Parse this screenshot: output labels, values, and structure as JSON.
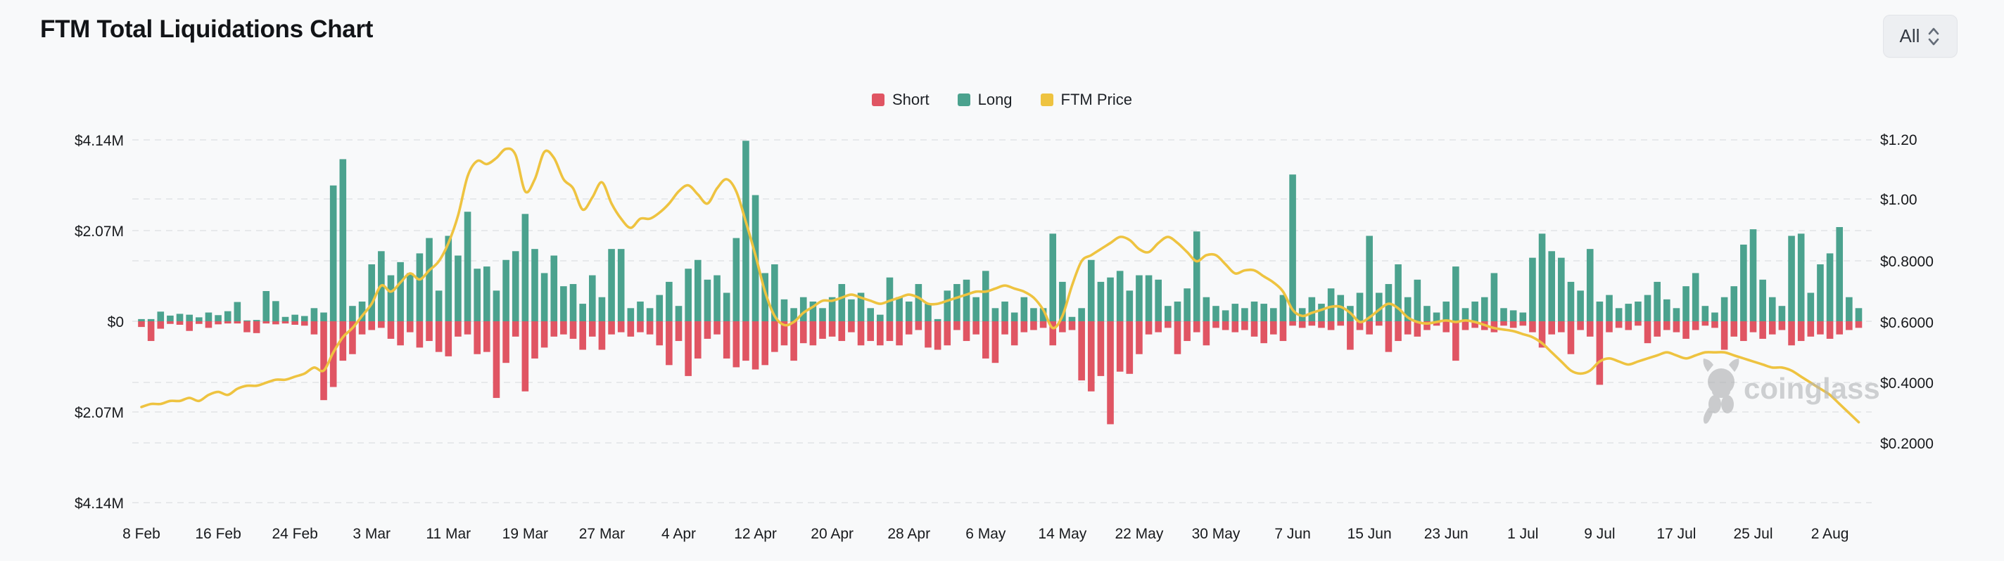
{
  "header": {
    "title": "FTM Total Liquidations Chart",
    "range_selector": {
      "value": "All"
    }
  },
  "legend": [
    {
      "label": "Short",
      "color": "#e05563"
    },
    {
      "label": "Long",
      "color": "#4ba28e"
    },
    {
      "label": "FTM Price",
      "color": "#eec340"
    }
  ],
  "watermark": {
    "label": "coinglass"
  },
  "chart_data": {
    "type": "bar+line",
    "title": "FTM Total Liquidations Chart",
    "x_tick_labels": [
      "8 Feb",
      "16 Feb",
      "24 Feb",
      "3 Mar",
      "11 Mar",
      "19 Mar",
      "27 Mar",
      "4 Apr",
      "12 Apr",
      "20 Apr",
      "28 Apr",
      "6 May",
      "14 May",
      "22 May",
      "30 May",
      "7 Jun",
      "15 Jun",
      "23 Jun",
      "1 Jul",
      "9 Jul",
      "17 Jul",
      "25 Jul",
      "2 Aug"
    ],
    "x_tick_interval_days": 8,
    "left_axis": {
      "unit": "USD liquidations",
      "tick_labels": [
        "$4.14M",
        "$2.07M",
        "$0",
        "$2.07M",
        "$4.14M"
      ],
      "max_abs_millions": 4.14
    },
    "right_axis": {
      "unit": "FTM price USD",
      "tick_labels": [
        "$1.20",
        "$1.00",
        "$0.8000",
        "$0.6000",
        "$0.4000",
        "$0.2000"
      ],
      "min": 0.2,
      "max": 1.2
    },
    "grid": true,
    "legend_position": "top-center",
    "series": [
      {
        "name": "Long",
        "type": "bar",
        "direction": "up",
        "color": "#4ba28e",
        "unit": "$M",
        "values": [
          0.05,
          0.05,
          0.22,
          0.13,
          0.17,
          0.15,
          0.09,
          0.2,
          0.14,
          0.23,
          0.44,
          0.02,
          0.03,
          0.69,
          0.46,
          0.1,
          0.15,
          0.12,
          0.3,
          0.2,
          3.1,
          3.7,
          0.35,
          0.45,
          1.3,
          1.6,
          1.05,
          1.35,
          1.1,
          1.55,
          1.9,
          0.7,
          1.95,
          1.5,
          2.5,
          1.2,
          1.25,
          0.7,
          1.4,
          1.6,
          2.45,
          1.65,
          1.1,
          1.5,
          0.8,
          0.85,
          0.4,
          1.05,
          0.55,
          1.65,
          1.65,
          0.3,
          0.45,
          0.3,
          0.6,
          0.9,
          0.35,
          1.2,
          1.4,
          0.95,
          1.05,
          0.65,
          1.9,
          4.12,
          2.88,
          1.1,
          1.3,
          0.5,
          0.3,
          0.55,
          0.45,
          0.3,
          0.55,
          0.85,
          0.5,
          0.65,
          0.3,
          0.15,
          1.0,
          0.55,
          0.45,
          0.85,
          0.4,
          0.05,
          0.7,
          0.85,
          0.95,
          0.55,
          1.15,
          0.3,
          0.45,
          0.2,
          0.55,
          0.3,
          0.3,
          2.0,
          0.9,
          0.1,
          0.3,
          1.4,
          0.9,
          1.0,
          1.15,
          0.7,
          1.05,
          1.05,
          0.95,
          0.35,
          0.45,
          0.75,
          2.05,
          0.55,
          0.35,
          0.25,
          0.4,
          0.3,
          0.45,
          0.4,
          0.3,
          0.6,
          3.35,
          0.3,
          0.55,
          0.4,
          0.75,
          0.6,
          0.35,
          0.65,
          1.95,
          0.65,
          0.85,
          1.3,
          0.55,
          0.95,
          0.35,
          0.2,
          0.45,
          1.25,
          0.3,
          0.45,
          0.55,
          1.1,
          0.3,
          0.25,
          0.2,
          1.45,
          2.0,
          1.6,
          1.45,
          0.9,
          0.7,
          1.65,
          0.45,
          0.6,
          0.3,
          0.4,
          0.45,
          0.6,
          0.9,
          0.5,
          0.3,
          0.8,
          1.1,
          0.35,
          0.2,
          0.55,
          0.8,
          1.75,
          2.1,
          0.95,
          0.55,
          0.35,
          1.95,
          2.0,
          0.65,
          1.3,
          1.55,
          2.15,
          0.55,
          0.3
        ]
      },
      {
        "name": "Short",
        "type": "bar",
        "direction": "down",
        "color": "#e05563",
        "unit": "$M",
        "values": [
          0.13,
          0.45,
          0.17,
          0.06,
          0.08,
          0.22,
          0.06,
          0.15,
          0.07,
          0.05,
          0.05,
          0.25,
          0.27,
          0.05,
          0.07,
          0.05,
          0.08,
          0.1,
          0.3,
          1.8,
          1.5,
          0.9,
          0.75,
          0.3,
          0.2,
          0.15,
          0.4,
          0.55,
          0.25,
          0.6,
          0.45,
          0.7,
          0.8,
          0.35,
          0.3,
          0.75,
          0.7,
          1.75,
          0.95,
          0.35,
          1.6,
          0.85,
          0.6,
          0.35,
          0.3,
          0.4,
          0.65,
          0.35,
          0.65,
          0.3,
          0.25,
          0.35,
          0.25,
          0.3,
          0.55,
          1.0,
          0.45,
          1.25,
          0.85,
          0.4,
          0.3,
          0.85,
          1.05,
          0.9,
          1.1,
          1.0,
          0.7,
          0.55,
          0.9,
          0.5,
          0.55,
          0.4,
          0.35,
          0.45,
          0.25,
          0.55,
          0.45,
          0.55,
          0.45,
          0.55,
          0.3,
          0.2,
          0.6,
          0.65,
          0.55,
          0.2,
          0.45,
          0.3,
          0.85,
          0.95,
          0.3,
          0.55,
          0.25,
          0.2,
          0.15,
          0.55,
          0.25,
          0.2,
          1.35,
          1.6,
          1.25,
          2.35,
          1.15,
          1.2,
          0.75,
          0.3,
          0.25,
          0.15,
          0.75,
          0.45,
          0.25,
          0.55,
          0.15,
          0.2,
          0.25,
          0.2,
          0.35,
          0.5,
          0.3,
          0.45,
          0.1,
          0.15,
          0.1,
          0.15,
          0.2,
          0.1,
          0.65,
          0.2,
          0.3,
          0.1,
          0.7,
          0.45,
          0.3,
          0.35,
          0.2,
          0.1,
          0.25,
          0.9,
          0.2,
          0.15,
          0.2,
          0.25,
          0.1,
          0.15,
          0.1,
          0.25,
          0.6,
          0.3,
          0.25,
          0.75,
          0.2,
          0.35,
          1.45,
          0.25,
          0.15,
          0.2,
          0.1,
          0.5,
          0.35,
          0.2,
          0.25,
          0.4,
          0.2,
          0.1,
          0.15,
          0.65,
          0.35,
          0.45,
          0.25,
          0.4,
          0.3,
          0.2,
          0.55,
          0.45,
          0.35,
          0.3,
          0.4,
          0.3,
          0.2,
          0.15
        ]
      },
      {
        "name": "FTM Price",
        "type": "line",
        "color": "#eec340",
        "unit": "$",
        "values": [
          0.32,
          0.33,
          0.33,
          0.34,
          0.34,
          0.35,
          0.34,
          0.36,
          0.37,
          0.36,
          0.38,
          0.39,
          0.39,
          0.4,
          0.41,
          0.41,
          0.42,
          0.43,
          0.45,
          0.44,
          0.5,
          0.55,
          0.58,
          0.62,
          0.66,
          0.72,
          0.7,
          0.73,
          0.76,
          0.74,
          0.77,
          0.8,
          0.86,
          0.95,
          1.08,
          1.13,
          1.12,
          1.14,
          1.17,
          1.15,
          1.03,
          1.07,
          1.16,
          1.14,
          1.07,
          1.04,
          0.97,
          1.01,
          1.06,
          0.99,
          0.94,
          0.91,
          0.94,
          0.94,
          0.96,
          0.99,
          1.03,
          1.05,
          1.02,
          0.99,
          1.04,
          1.07,
          1.03,
          0.93,
          0.82,
          0.7,
          0.62,
          0.59,
          0.6,
          0.63,
          0.65,
          0.67,
          0.67,
          0.68,
          0.69,
          0.68,
          0.67,
          0.66,
          0.67,
          0.68,
          0.69,
          0.68,
          0.66,
          0.66,
          0.67,
          0.68,
          0.69,
          0.7,
          0.7,
          0.71,
          0.72,
          0.71,
          0.7,
          0.68,
          0.64,
          0.58,
          0.62,
          0.72,
          0.8,
          0.82,
          0.84,
          0.86,
          0.88,
          0.87,
          0.84,
          0.83,
          0.86,
          0.88,
          0.86,
          0.83,
          0.8,
          0.82,
          0.82,
          0.79,
          0.76,
          0.77,
          0.77,
          0.75,
          0.73,
          0.7,
          0.64,
          0.62,
          0.63,
          0.64,
          0.65,
          0.65,
          0.63,
          0.6,
          0.615,
          0.64,
          0.66,
          0.645,
          0.615,
          0.6,
          0.595,
          0.6,
          0.605,
          0.6,
          0.605,
          0.6,
          0.59,
          0.58,
          0.575,
          0.57,
          0.56,
          0.55,
          0.53,
          0.5,
          0.47,
          0.44,
          0.43,
          0.44,
          0.47,
          0.48,
          0.47,
          0.46,
          0.47,
          0.48,
          0.49,
          0.5,
          0.49,
          0.48,
          0.49,
          0.5,
          0.5,
          0.5,
          0.49,
          0.48,
          0.47,
          0.46,
          0.45,
          0.45,
          0.44,
          0.42,
          0.4,
          0.38,
          0.36,
          0.33,
          0.3,
          0.27
        ]
      }
    ]
  }
}
